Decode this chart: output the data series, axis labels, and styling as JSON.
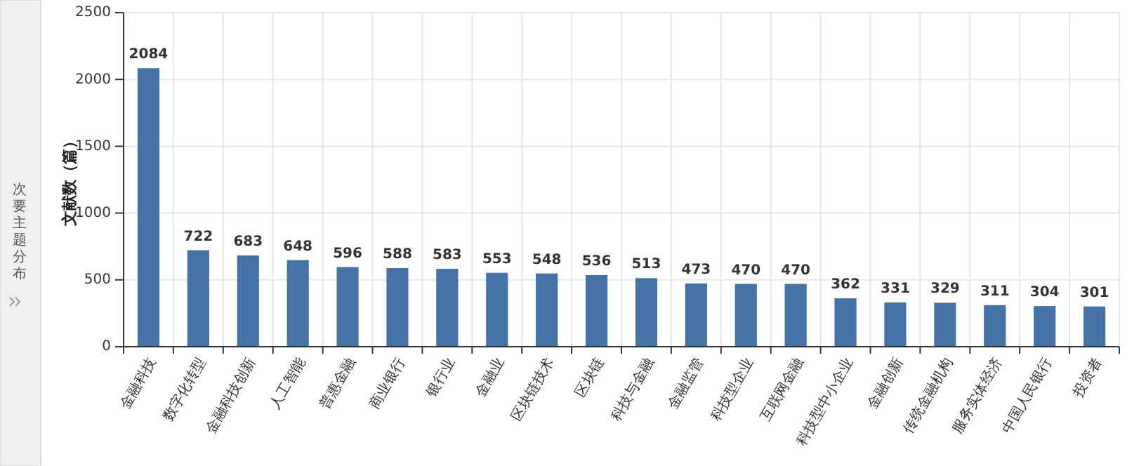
{
  "chart_data": {
    "type": "bar",
    "categories": [
      "金融科技",
      "数字化转型",
      "金融科技创新",
      "人工智能",
      "普惠金融",
      "商业银行",
      "银行业",
      "金融业",
      "区块链技术",
      "区块链",
      "科技与金融",
      "金融监管",
      "科技型企业",
      "互联网金融",
      "科技型中小企业",
      "金融创新",
      "传统金融机构",
      "服务实体经济",
      "中国人民银行",
      "投资者"
    ],
    "values": [
      2084,
      722,
      683,
      648,
      596,
      588,
      583,
      553,
      548,
      536,
      513,
      473,
      470,
      470,
      362,
      331,
      329,
      311,
      304,
      301
    ],
    "color": "#4572a7",
    "ylabel": "文献数（篇）",
    "ylim": [
      0,
      2500
    ],
    "yticks": [
      0,
      500,
      1000,
      1500,
      2000,
      2500
    ],
    "grid": true,
    "data_labels": true,
    "annotations": [
      "次要主题分布"
    ]
  }
}
